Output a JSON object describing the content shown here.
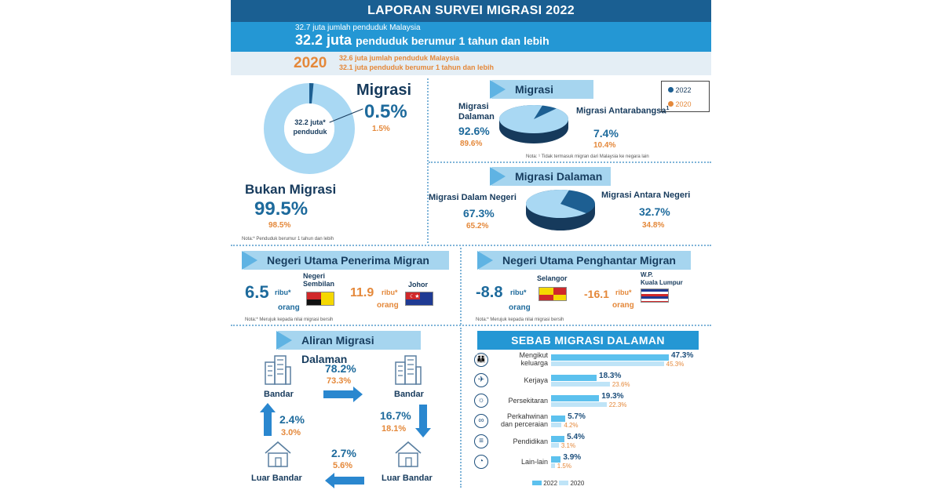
{
  "header": {
    "title": "LAPORAN SURVEI MIGRASI 2022"
  },
  "band2022": {
    "line1": "32.7 juta jumlah penduduk Malaysia",
    "big_value": "32.2 juta",
    "big_rest": "penduduk berumur 1 tahun dan lebih"
  },
  "band2020": {
    "year": "2020",
    "line1": "32.6 juta jumlah penduduk Malaysia",
    "line2": "32.1 juta penduduk berumur 1 tahun dan lebih"
  },
  "donut": {
    "center": "32.2 juta* penduduk",
    "migrasi_title": "Migrasi",
    "migrasi_2022": "0.5%",
    "migrasi_2020": "1.5%",
    "bukan_title": "Bukan Migrasi",
    "bukan_2022": "99.5%",
    "bukan_2020": "98.5%",
    "note": "Nota:* Penduduk berumur 1 tahun dan lebih",
    "share_2022": 0.005
  },
  "legend": {
    "y2022": "2022",
    "y2020": "2020",
    "color_2022": "#1d5f92",
    "color_2020": "#e4883a"
  },
  "migrasi": {
    "title": "Migrasi",
    "dalaman_label": "Migrasi Dalaman",
    "dalaman_2022": "92.6%",
    "dalaman_2020": "89.6%",
    "antarabangsa_label": "Migrasi Antarabangsa",
    "antarabangsa_sup": "1",
    "antarabangsa_2022": "7.4%",
    "antarabangsa_2020": "10.4%",
    "note": "Nota: ¹ Tidak termasuk migran dari Malaysia ke negara lain",
    "share_2022": 0.926
  },
  "migrasi_dalaman": {
    "title": "Migrasi Dalaman",
    "dalam_negeri_label": "Migrasi Dalam Negeri",
    "dalam_negeri_2022": "67.3%",
    "dalam_negeri_2020": "65.2%",
    "antara_negeri_label": "Migrasi Antara Negeri",
    "antara_negeri_2022": "32.7%",
    "antara_negeri_2020": "34.8%",
    "share_2022": 0.673
  },
  "penerima": {
    "title": "Negeri Utama Penerima Migran",
    "a_value": "6.5",
    "a_unit": "ribu*",
    "a_orang": "orang",
    "a_state": "Negeri Sembilan",
    "b_value": "11.9",
    "b_unit": "ribu*",
    "b_orang": "orang",
    "b_state": "Johor",
    "note": "Nota:* Merujuk kepada nilai migrasi bersih"
  },
  "penghantar": {
    "title": "Negeri Utama Penghantar Migran",
    "a_value": "-8.8",
    "a_unit": "ribu*",
    "a_orang": "orang",
    "a_state": "Selangor",
    "b_value": "-16.1",
    "b_unit": "ribu*",
    "b_orang": "orang",
    "b_state_line1": "W.P.",
    "b_state_line2": "Kuala Lumpur",
    "note": "Nota:* Merujuk kepada nilai migrasi bersih"
  },
  "aliran": {
    "title": "Aliran Migrasi Dalaman",
    "bandar": "Bandar",
    "luar_bandar": "Luar Bandar",
    "bb_2022": "78.2%",
    "bb_2020": "73.3%",
    "blb_2022": "16.7%",
    "blb_2020": "18.1%",
    "lbb_2022": "2.4%",
    "lbb_2020": "3.0%",
    "lblb_2022": "2.7%",
    "lblb_2020": "5.6%"
  },
  "sebab": {
    "title": "SEBAB MIGRASI DALAMAN",
    "legend_2022": "2022",
    "legend_2020": "2020",
    "rows": [
      {
        "label1": "Mengikut",
        "label2": "keluarga",
        "v2022": 47.3,
        "v2020": 45.3,
        "t2022": "47.3%",
        "t2020": "45.3%",
        "icon": "family-icon"
      },
      {
        "label1": "Kerjaya",
        "label2": "",
        "v2022": 18.3,
        "v2020": 23.6,
        "t2022": "18.3%",
        "t2020": "23.6%",
        "icon": "worker-icon"
      },
      {
        "label1": "Persekitaran",
        "label2": "",
        "v2022": 19.3,
        "v2020": 22.3,
        "t2022": "19.3%",
        "t2020": "22.3%",
        "icon": "environment-icon"
      },
      {
        "label1": "Perkahwinan",
        "label2": "dan perceraian",
        "v2022": 5.7,
        "v2020": 4.2,
        "t2022": "5.7%",
        "t2020": "4.2%",
        "icon": "rings-icon"
      },
      {
        "label1": "Pendidikan",
        "label2": "",
        "v2022": 5.4,
        "v2020": 3.1,
        "t2022": "5.4%",
        "t2020": "3.1%",
        "icon": "books-icon"
      },
      {
        "label1": "Lain-lain",
        "label2": "",
        "v2022": 3.9,
        "v2020": 1.5,
        "t2022": "3.9%",
        "t2020": "1.5%",
        "icon": "other-icon"
      }
    ]
  }
}
